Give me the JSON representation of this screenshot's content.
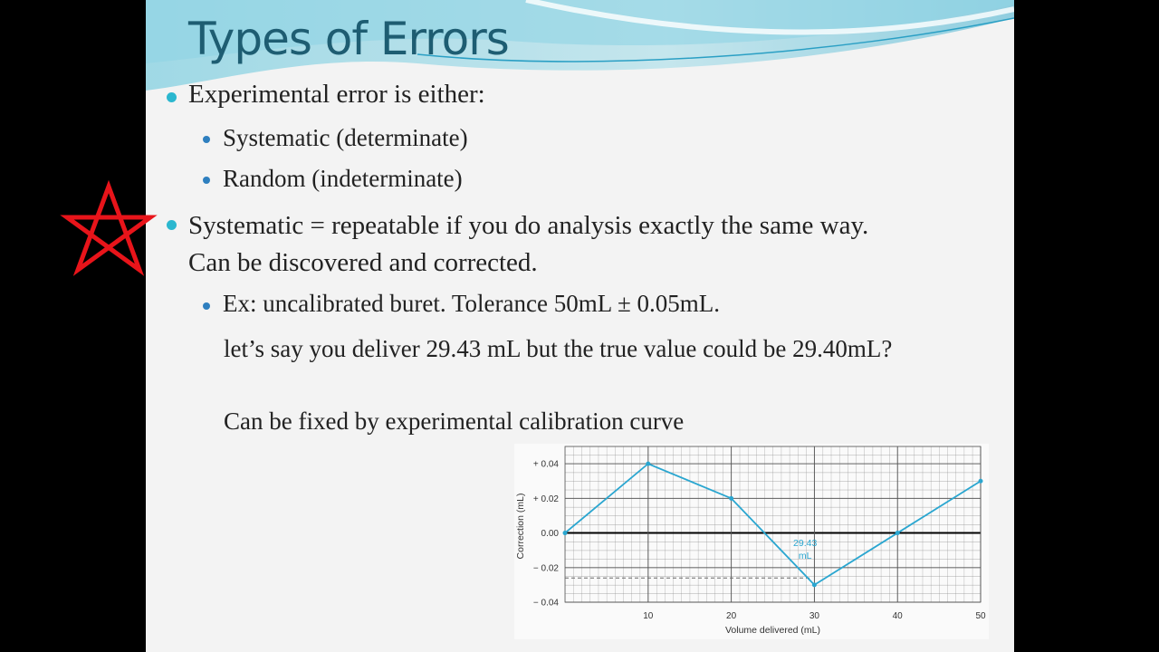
{
  "slide": {
    "title": "Types of Errors",
    "bullets": [
      {
        "text": "Experimental error is either:",
        "sub": [
          {
            "text": "Systematic (determinate)"
          },
          {
            "text": "Random (indeterminate)"
          }
        ]
      },
      {
        "text": "Systematic = repeatable if you do analysis exactly the same way. Can be discovered and corrected.",
        "sub": [
          {
            "text": "Ex: uncalibrated buret.  Tolerance 50mL ± 0.05mL.",
            "notes": [
              "let’s say you deliver 29.43 mL but the true value could be 29.40mL?",
              "Can be fixed by experimental calibration curve"
            ]
          }
        ]
      }
    ]
  },
  "chart_data": {
    "type": "line",
    "x_label": "Volume delivered (mL)",
    "y_label": "Correction (mL)",
    "x": [
      0,
      10,
      20,
      30,
      40,
      50
    ],
    "values": [
      0,
      0.04,
      0.02,
      -0.03,
      0,
      0.03
    ],
    "color": "#2aa6d0",
    "xlim": [
      0,
      50
    ],
    "ylim": [
      -0.04,
      0.05
    ],
    "xticks": [
      10,
      20,
      30,
      40,
      50
    ],
    "yticks": [
      {
        "value": 0.04,
        "label": "+ 0.04"
      },
      {
        "value": 0.02,
        "label": "+ 0.02"
      },
      {
        "value": 0,
        "label": "0.00"
      },
      {
        "value": -0.02,
        "label": "− 0.02"
      },
      {
        "value": -0.04,
        "label": "− 0.04"
      }
    ],
    "grid": true,
    "annotation": {
      "text": [
        "29.43",
        "mL"
      ],
      "x": 29.43,
      "y": -0.026
    }
  }
}
